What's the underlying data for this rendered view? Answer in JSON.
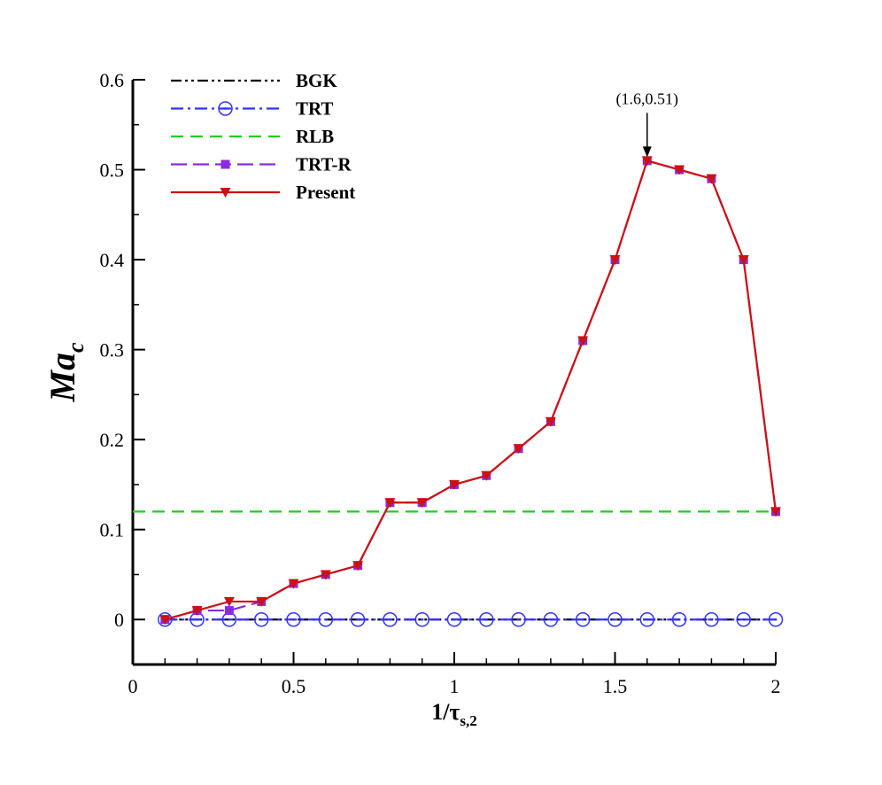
{
  "chart_data": {
    "type": "line",
    "xlabel": {
      "main": "1/τ",
      "sub": "s,2"
    },
    "ylabel": {
      "main": "Ma",
      "sub": "c"
    },
    "xlim": [
      0,
      2
    ],
    "ylim": [
      -0.05,
      0.6
    ],
    "xticks": [
      0,
      0.5,
      1,
      1.5,
      2
    ],
    "xtick_labels": [
      "0",
      "0.5",
      "1",
      "1.5",
      "2"
    ],
    "yticks": [
      0,
      0.1,
      0.2,
      0.3,
      0.4,
      0.5,
      0.6
    ],
    "ytick_labels": [
      "0",
      "0.1",
      "0.2",
      "0.3",
      "0.4",
      "0.5",
      "0.6"
    ],
    "grid": false,
    "legend_position": "top-left",
    "annotation": {
      "text": "(1.6,0.51)",
      "x": 1.6,
      "y": 0.51
    },
    "series": [
      {
        "name": "BGK",
        "color": "#000000",
        "dash": "12 4 3 4 3 4",
        "marker": "none",
        "x": [
          0.1,
          0.2,
          0.3,
          0.4,
          0.5,
          0.6,
          0.7,
          0.8,
          0.9,
          1.0,
          1.1,
          1.2,
          1.3,
          1.4,
          1.5,
          1.6,
          1.7,
          1.8,
          1.9,
          2.0
        ],
        "values": [
          0,
          0,
          0,
          0,
          0,
          0,
          0,
          0,
          0,
          0,
          0,
          0,
          0,
          0,
          0,
          0,
          0,
          0,
          0,
          0
        ]
      },
      {
        "name": "TRT",
        "color": "#3333ff",
        "dash": "14 5 3 5",
        "marker": "circle-dot",
        "x": [
          0.1,
          0.2,
          0.3,
          0.4,
          0.5,
          0.6,
          0.7,
          0.8,
          0.9,
          1.0,
          1.1,
          1.2,
          1.3,
          1.4,
          1.5,
          1.6,
          1.7,
          1.8,
          1.9,
          2.0
        ],
        "values": [
          0,
          0,
          0,
          0,
          0,
          0,
          0,
          0,
          0,
          0,
          0,
          0,
          0,
          0,
          0,
          0,
          0,
          0,
          0,
          0
        ]
      },
      {
        "name": "RLB",
        "color": "#22cc22",
        "dash": "14 8",
        "marker": "none",
        "x": [
          0.0,
          2.0
        ],
        "values": [
          0.12,
          0.12
        ]
      },
      {
        "name": "TRT-R",
        "color": "#8a2be2",
        "dash": "18 7",
        "marker": "square",
        "x": [
          0.1,
          0.2,
          0.3,
          0.4,
          0.5,
          0.6,
          0.7,
          0.8,
          0.9,
          1.0,
          1.1,
          1.2,
          1.3,
          1.4,
          1.5,
          1.6,
          1.7,
          1.8,
          1.9,
          2.0
        ],
        "values": [
          0,
          0.01,
          0.01,
          0.02,
          0.04,
          0.05,
          0.06,
          0.13,
          0.13,
          0.15,
          0.16,
          0.19,
          0.22,
          0.31,
          0.4,
          0.51,
          0.5,
          0.49,
          0.4,
          0.12
        ]
      },
      {
        "name": "Present",
        "color": "#cc1111",
        "dash": "",
        "marker": "triangle-down",
        "x": [
          0.1,
          0.2,
          0.3,
          0.4,
          0.5,
          0.6,
          0.7,
          0.8,
          0.9,
          1.0,
          1.1,
          1.2,
          1.3,
          1.4,
          1.5,
          1.6,
          1.7,
          1.8,
          1.9,
          2.0
        ],
        "values": [
          0,
          0.01,
          0.02,
          0.02,
          0.04,
          0.05,
          0.06,
          0.13,
          0.13,
          0.15,
          0.16,
          0.19,
          0.22,
          0.31,
          0.4,
          0.51,
          0.5,
          0.49,
          0.4,
          0.12
        ]
      }
    ]
  }
}
